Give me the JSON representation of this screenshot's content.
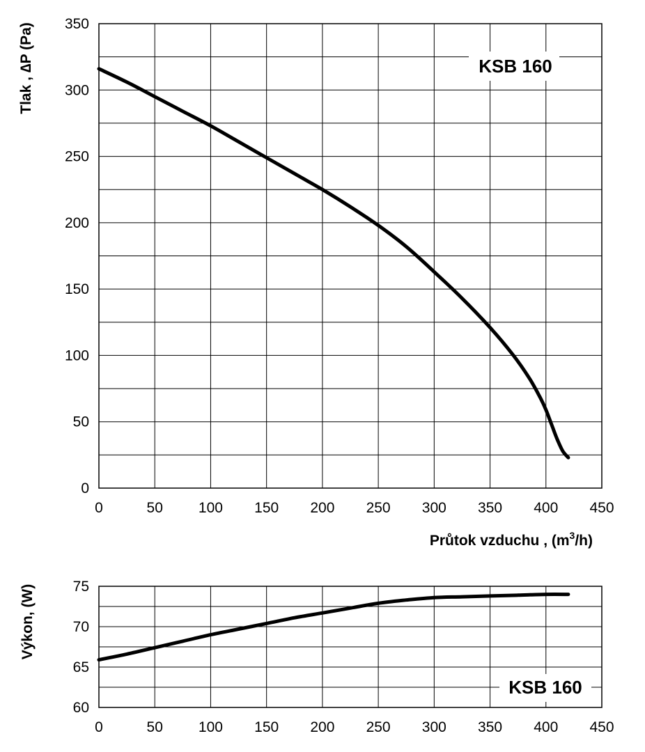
{
  "chart_data": [
    {
      "type": "line",
      "title": "",
      "annotation": "KSB 160",
      "ylabel": "Tlak , ∆P (Pa)",
      "xlabel_main": "Průtok vzduchu , (m",
      "xlabel_sup": "3",
      "xlabel_tail": "/h)",
      "xlim": [
        0,
        450
      ],
      "ylim": [
        0,
        350
      ],
      "xticks": [
        "0",
        "50",
        "100",
        "150",
        "200",
        "250",
        "300",
        "350",
        "400",
        "450"
      ],
      "yticks": [
        "0",
        "50",
        "100",
        "150",
        "200",
        "250",
        "300",
        "350"
      ],
      "grid": true,
      "series": [
        {
          "x": [
            0,
            25,
            50,
            75,
            100,
            125,
            150,
            175,
            200,
            225,
            250,
            275,
            300,
            325,
            350,
            370,
            385,
            395,
            400,
            405,
            410,
            415,
            420
          ],
          "y": [
            316,
            306,
            295,
            284,
            273,
            261,
            249,
            237,
            225,
            212,
            198,
            182,
            163,
            143,
            121,
            101,
            83,
            68,
            59,
            48,
            37,
            28,
            23
          ]
        }
      ]
    },
    {
      "type": "line",
      "title": "",
      "annotation": "KSB 160",
      "ylabel": "Výkon, (W)",
      "xlabel": "",
      "xlim": [
        0,
        450
      ],
      "ylim": [
        60,
        75
      ],
      "xticks": [
        "0",
        "50",
        "100",
        "150",
        "200",
        "250",
        "300",
        "350",
        "400",
        "450"
      ],
      "yticks": [
        "60",
        "65",
        "70",
        "75"
      ],
      "grid": true,
      "series": [
        {
          "x": [
            0,
            25,
            50,
            75,
            100,
            125,
            150,
            175,
            200,
            225,
            250,
            275,
            300,
            325,
            350,
            375,
            400,
            420
          ],
          "y": [
            65.9,
            66.6,
            67.4,
            68.2,
            69.0,
            69.7,
            70.4,
            71.1,
            71.7,
            72.3,
            72.9,
            73.3,
            73.6,
            73.7,
            73.8,
            73.9,
            74.0,
            74.0
          ]
        }
      ]
    }
  ]
}
